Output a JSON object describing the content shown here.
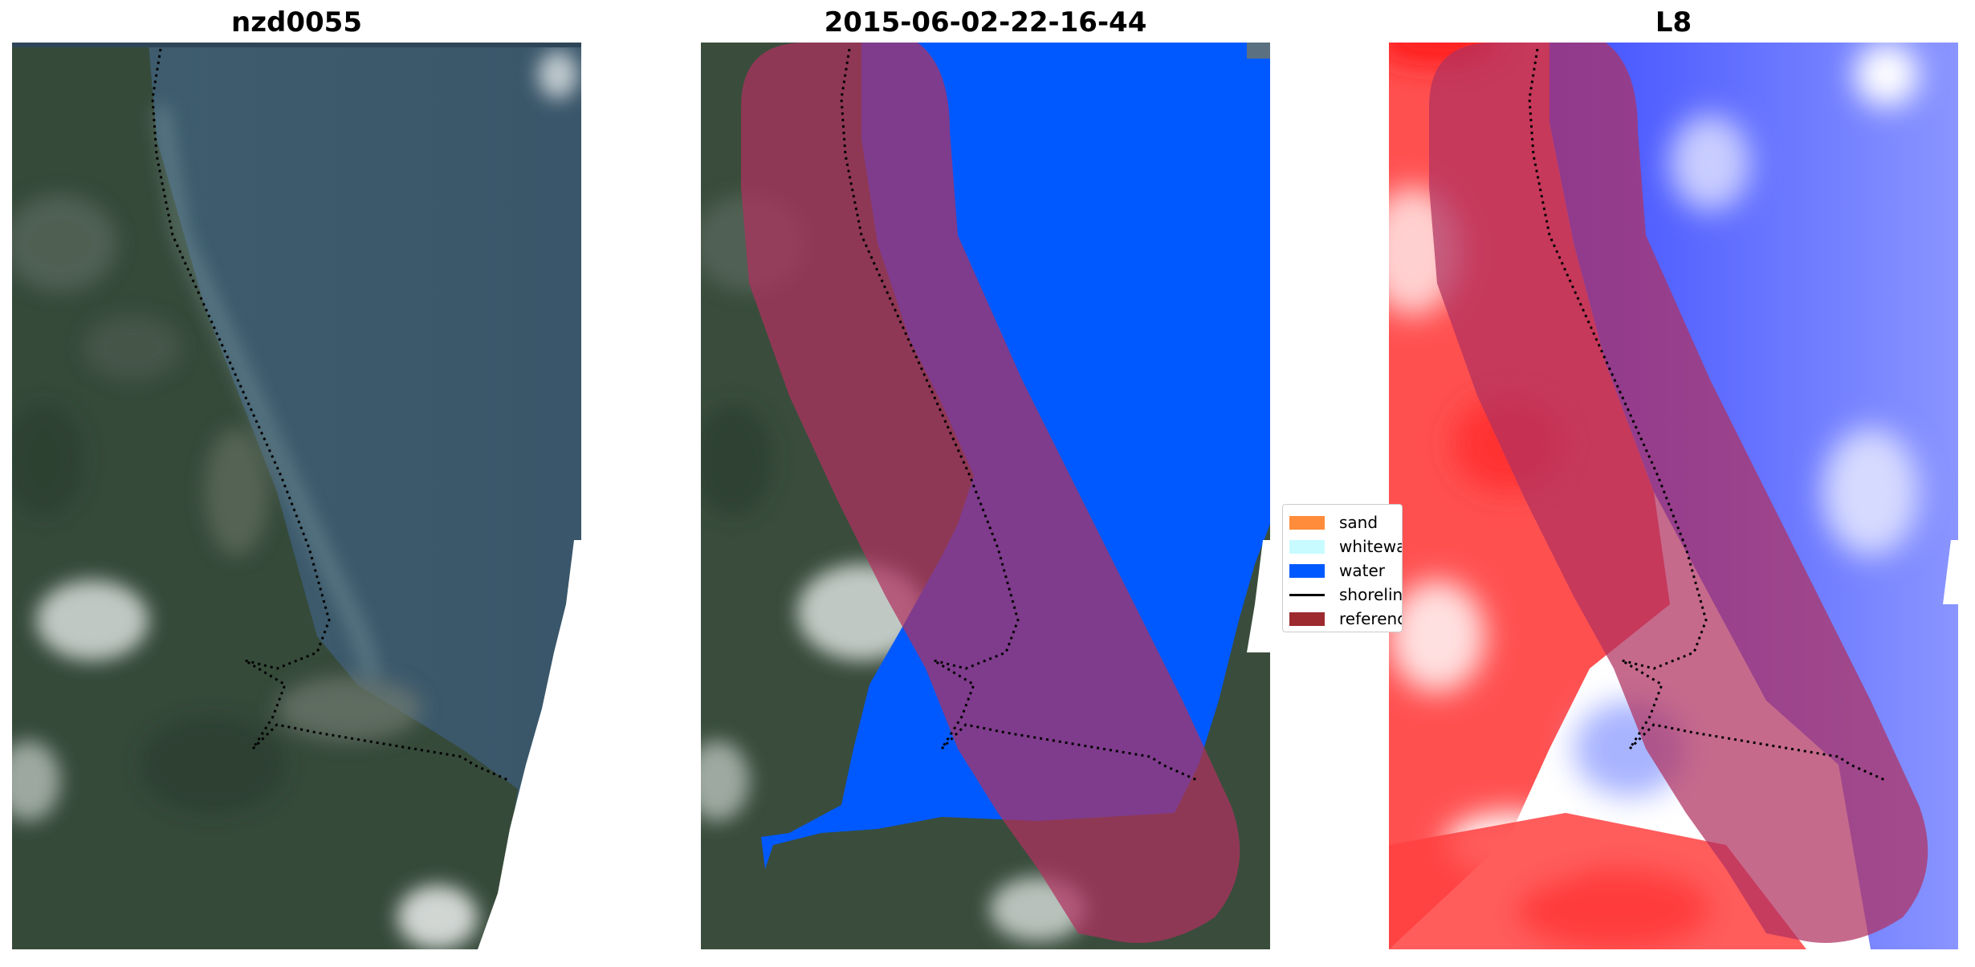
{
  "panels": [
    {
      "title": "nzd0055"
    },
    {
      "title": "2015-06-02-22-16-44"
    },
    {
      "title": "L8"
    }
  ],
  "legend": {
    "items": [
      {
        "label": "sand",
        "color": "#ff8c3b"
      },
      {
        "label": "whitewater",
        "color": "#c8fbff"
      },
      {
        "label": "water",
        "color": "#0059ff"
      },
      {
        "label": "shoreline",
        "color": "#000000"
      },
      {
        "label": "reference shoreline buffer",
        "color": "#9c2a2f"
      }
    ]
  },
  "colors": {
    "satellite_land": "#3a4d3c",
    "satellite_water": "#3e5c6c",
    "water_class": "#0059ff",
    "buffer": "#b03060",
    "index_positive": "#ff2020",
    "index_negative": "#2838ff"
  }
}
